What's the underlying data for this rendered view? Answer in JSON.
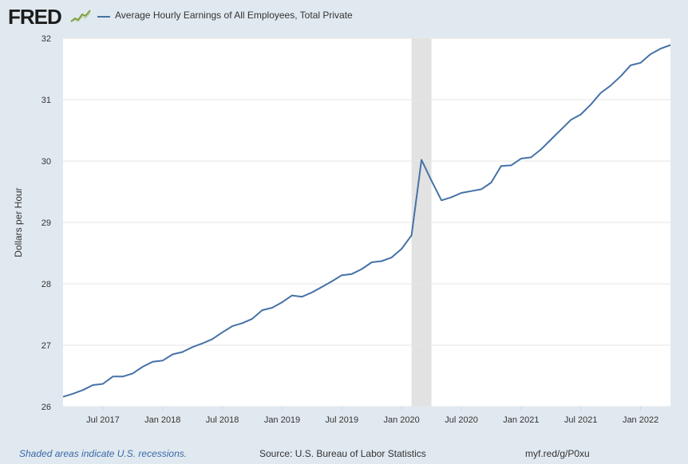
{
  "header": {
    "logo_text": "FRED",
    "series_title": "Average Hourly Earnings of All Employees, Total Private"
  },
  "footer": {
    "note": "Shaded areas indicate U.S. recessions.",
    "source": "Source: U.S. Bureau of Labor Statistics",
    "link": "myf.red/g/P0xu"
  },
  "colors": {
    "line": "#4572a7",
    "recession": "#e2e2e2",
    "background": "#e1e9f0",
    "plot": "#ffffff"
  },
  "chart_data": {
    "type": "line",
    "title": "Average Hourly Earnings of All Employees, Total Private",
    "xlabel": "",
    "ylabel": "Dollars per Hour",
    "ylim": [
      26,
      32
    ],
    "xlim": [
      "2017-03",
      "2022-04"
    ],
    "yticks": [
      26,
      27,
      28,
      29,
      30,
      31,
      32
    ],
    "xticks": [
      {
        "label": "Jul 2017",
        "date": "2017-07"
      },
      {
        "label": "Jan 2018",
        "date": "2018-01"
      },
      {
        "label": "Jul 2018",
        "date": "2018-07"
      },
      {
        "label": "Jan 2019",
        "date": "2019-01"
      },
      {
        "label": "Jul 2019",
        "date": "2019-07"
      },
      {
        "label": "Jan 2020",
        "date": "2020-01"
      },
      {
        "label": "Jul 2020",
        "date": "2020-07"
      },
      {
        "label": "Jan 2021",
        "date": "2021-01"
      },
      {
        "label": "Jul 2021",
        "date": "2021-07"
      },
      {
        "label": "Jan 2022",
        "date": "2022-01"
      }
    ],
    "recessions": [
      {
        "start": "2020-02",
        "end": "2020-04"
      }
    ],
    "grid": true,
    "series": [
      {
        "name": "Average Hourly Earnings of All Employees, Total Private",
        "x": [
          "2017-03",
          "2017-04",
          "2017-05",
          "2017-06",
          "2017-07",
          "2017-08",
          "2017-09",
          "2017-10",
          "2017-11",
          "2017-12",
          "2018-01",
          "2018-02",
          "2018-03",
          "2018-04",
          "2018-05",
          "2018-06",
          "2018-07",
          "2018-08",
          "2018-09",
          "2018-10",
          "2018-11",
          "2018-12",
          "2019-01",
          "2019-02",
          "2019-03",
          "2019-04",
          "2019-05",
          "2019-06",
          "2019-07",
          "2019-08",
          "2019-09",
          "2019-10",
          "2019-11",
          "2019-12",
          "2020-01",
          "2020-02",
          "2020-03",
          "2020-04",
          "2020-05",
          "2020-06",
          "2020-07",
          "2020-08",
          "2020-09",
          "2020-10",
          "2020-11",
          "2020-12",
          "2021-01",
          "2021-02",
          "2021-03",
          "2021-04",
          "2021-05",
          "2021-06",
          "2021-07",
          "2021-08",
          "2021-09",
          "2021-10",
          "2021-11",
          "2021-12",
          "2022-01",
          "2022-02",
          "2022-03",
          "2022-04"
        ],
        "values": [
          26.16,
          26.21,
          26.27,
          26.35,
          26.37,
          26.49,
          26.49,
          26.54,
          26.65,
          26.73,
          26.75,
          26.85,
          26.89,
          26.97,
          27.03,
          27.1,
          27.21,
          27.31,
          27.36,
          27.43,
          27.57,
          27.61,
          27.7,
          27.81,
          27.79,
          27.86,
          27.95,
          28.04,
          28.14,
          28.16,
          28.24,
          28.35,
          28.37,
          28.43,
          28.57,
          28.79,
          30.02,
          29.68,
          29.36,
          29.41,
          29.48,
          29.51,
          29.54,
          29.65,
          29.92,
          29.93,
          30.04,
          30.06,
          30.19,
          30.35,
          30.51,
          30.67,
          30.76,
          30.92,
          31.11,
          31.23,
          31.38,
          31.56,
          31.6,
          31.74,
          31.83,
          31.89
        ]
      }
    ]
  }
}
